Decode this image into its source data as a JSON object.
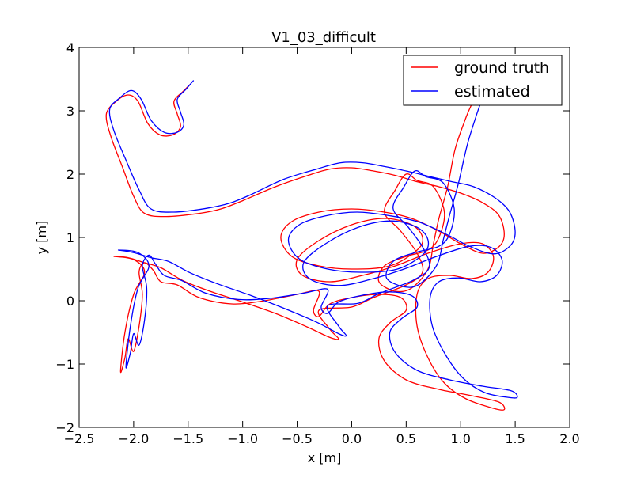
{
  "chart_data": {
    "type": "line",
    "title": "V1_03_difficult",
    "xlabel": "x [m]",
    "ylabel": "y [m]",
    "xlim": [
      -2.5,
      2.0
    ],
    "ylim": [
      -2,
      4
    ],
    "xticks": [
      -2.5,
      -2.0,
      -1.5,
      -1.0,
      -0.5,
      0.0,
      0.5,
      1.0,
      1.5,
      2.0
    ],
    "xtick_labels": [
      "−2.5",
      "−2.0",
      "−1.5",
      "−1.0",
      "−0.5",
      "0.0",
      "0.5",
      "1.0",
      "1.5",
      "2.0"
    ],
    "yticks": [
      -2,
      -1,
      0,
      1,
      2,
      3,
      4
    ],
    "ytick_labels": [
      "−2",
      "−1",
      "0",
      "1",
      "2",
      "3",
      "4"
    ],
    "grid": false,
    "legend_position": "top-right",
    "series": [
      {
        "name": "ground truth",
        "color": "#ff0000",
        "points": [
          [
            -1.48,
            3.42
          ],
          [
            -1.55,
            3.3
          ],
          [
            -1.63,
            3.15
          ],
          [
            -1.6,
            2.95
          ],
          [
            -1.57,
            2.75
          ],
          [
            -1.64,
            2.62
          ],
          [
            -1.76,
            2.62
          ],
          [
            -1.87,
            2.8
          ],
          [
            -1.96,
            3.15
          ],
          [
            -2.05,
            3.25
          ],
          [
            -2.16,
            3.15
          ],
          [
            -2.25,
            2.95
          ],
          [
            -2.21,
            2.6
          ],
          [
            -2.1,
            2.1
          ],
          [
            -2.0,
            1.65
          ],
          [
            -1.9,
            1.38
          ],
          [
            -1.7,
            1.33
          ],
          [
            -1.4,
            1.38
          ],
          [
            -1.2,
            1.45
          ],
          [
            -1.0,
            1.58
          ],
          [
            -0.7,
            1.8
          ],
          [
            -0.4,
            1.98
          ],
          [
            -0.2,
            2.08
          ],
          [
            0.0,
            2.1
          ],
          [
            0.2,
            2.05
          ],
          [
            0.4,
            1.98
          ],
          [
            0.6,
            1.88
          ],
          [
            0.8,
            1.8
          ],
          [
            1.0,
            1.7
          ],
          [
            1.2,
            1.55
          ],
          [
            1.35,
            1.35
          ],
          [
            1.4,
            1.05
          ],
          [
            1.35,
            0.85
          ],
          [
            1.2,
            0.75
          ],
          [
            1.0,
            0.9
          ],
          [
            0.8,
            1.1
          ],
          [
            0.55,
            1.3
          ],
          [
            0.3,
            1.4
          ],
          [
            0.0,
            1.45
          ],
          [
            -0.3,
            1.4
          ],
          [
            -0.55,
            1.25
          ],
          [
            -0.65,
            1.0
          ],
          [
            -0.55,
            0.7
          ],
          [
            -0.3,
            0.55
          ],
          [
            0.0,
            0.5
          ],
          [
            0.35,
            0.55
          ],
          [
            0.6,
            0.8
          ],
          [
            0.65,
            1.0
          ],
          [
            0.55,
            1.2
          ],
          [
            0.3,
            1.3
          ],
          [
            0.0,
            1.2
          ],
          [
            -0.3,
            0.95
          ],
          [
            -0.5,
            0.65
          ],
          [
            -0.45,
            0.4
          ],
          [
            -0.2,
            0.3
          ],
          [
            0.1,
            0.4
          ],
          [
            0.4,
            0.55
          ],
          [
            0.7,
            0.75
          ],
          [
            1.0,
            0.9
          ],
          [
            1.2,
            0.9
          ],
          [
            1.3,
            0.7
          ],
          [
            1.25,
            0.45
          ],
          [
            1.1,
            0.35
          ],
          [
            0.9,
            0.4
          ],
          [
            0.7,
            0.35
          ],
          [
            0.6,
            0.1
          ],
          [
            0.6,
            -0.4
          ],
          [
            0.7,
            -0.9
          ],
          [
            0.85,
            -1.3
          ],
          [
            1.05,
            -1.55
          ],
          [
            1.3,
            -1.7
          ],
          [
            1.4,
            -1.72
          ],
          [
            1.35,
            -1.6
          ],
          [
            1.1,
            -1.5
          ],
          [
            0.8,
            -1.4
          ],
          [
            0.5,
            -1.25
          ],
          [
            0.3,
            -0.95
          ],
          [
            0.25,
            -0.6
          ],
          [
            0.35,
            -0.35
          ],
          [
            0.5,
            -0.15
          ],
          [
            0.45,
            0.05
          ],
          [
            0.25,
            0.1
          ],
          [
            0.0,
            0.05
          ],
          [
            -0.2,
            -0.05
          ],
          [
            -0.3,
            -0.25
          ],
          [
            -0.35,
            -0.15
          ],
          [
            -0.3,
            0.15
          ],
          [
            -0.5,
            0.1
          ],
          [
            -0.8,
            0.0
          ],
          [
            -1.1,
            -0.05
          ],
          [
            -1.4,
            0.05
          ],
          [
            -1.6,
            0.25
          ],
          [
            -1.75,
            0.3
          ],
          [
            -1.82,
            0.48
          ],
          [
            -1.9,
            0.6
          ],
          [
            -1.95,
            0.45
          ],
          [
            -1.92,
            0.1
          ],
          [
            -1.95,
            -0.4
          ],
          [
            -2.0,
            -0.8
          ],
          [
            -2.05,
            -0.6
          ],
          [
            -2.08,
            -0.9
          ],
          [
            -2.12,
            -1.12
          ],
          [
            -2.08,
            -0.5
          ],
          [
            -2.0,
            0.1
          ],
          [
            -1.9,
            0.45
          ],
          [
            -2.0,
            0.65
          ],
          [
            -2.18,
            0.7
          ],
          [
            -2.05,
            0.68
          ],
          [
            -1.9,
            0.6
          ],
          [
            -1.75,
            0.52
          ],
          [
            -1.55,
            0.32
          ],
          [
            -1.3,
            0.15
          ],
          [
            -1.0,
            -0.02
          ],
          [
            -0.7,
            -0.2
          ],
          [
            -0.4,
            -0.42
          ],
          [
            -0.2,
            -0.58
          ],
          [
            -0.12,
            -0.6
          ],
          [
            -0.2,
            -0.45
          ],
          [
            -0.3,
            -0.15
          ],
          [
            0.0,
            -0.1
          ],
          [
            0.2,
            0.05
          ],
          [
            0.5,
            0.25
          ],
          [
            0.65,
            0.45
          ],
          [
            0.6,
            0.75
          ],
          [
            0.45,
            1.1
          ],
          [
            0.3,
            1.4
          ],
          [
            0.4,
            1.75
          ],
          [
            0.5,
            2.0
          ],
          [
            0.6,
            1.9
          ],
          [
            0.75,
            1.8
          ],
          [
            0.85,
            1.4
          ],
          [
            0.8,
            1.0
          ],
          [
            0.7,
            0.8
          ],
          [
            0.5,
            0.7
          ],
          [
            0.3,
            0.55
          ],
          [
            0.25,
            0.3
          ],
          [
            0.4,
            0.15
          ],
          [
            0.55,
            0.2
          ],
          [
            0.7,
            0.5
          ],
          [
            0.75,
            0.9
          ],
          [
            0.8,
            1.3
          ],
          [
            0.88,
            1.8
          ],
          [
            0.95,
            2.4
          ],
          [
            1.05,
            2.9
          ],
          [
            1.1,
            3.1
          ]
        ]
      },
      {
        "name": "estimated",
        "color": "#0000ff",
        "points": [
          [
            -1.45,
            3.48
          ],
          [
            -1.52,
            3.34
          ],
          [
            -1.6,
            3.18
          ],
          [
            -1.57,
            2.98
          ],
          [
            -1.54,
            2.78
          ],
          [
            -1.6,
            2.66
          ],
          [
            -1.72,
            2.66
          ],
          [
            -1.84,
            2.85
          ],
          [
            -1.93,
            3.18
          ],
          [
            -2.02,
            3.32
          ],
          [
            -2.13,
            3.2
          ],
          [
            -2.22,
            3.02
          ],
          [
            -2.18,
            2.68
          ],
          [
            -2.06,
            2.18
          ],
          [
            -1.95,
            1.75
          ],
          [
            -1.84,
            1.45
          ],
          [
            -1.63,
            1.4
          ],
          [
            -1.33,
            1.46
          ],
          [
            -1.12,
            1.54
          ],
          [
            -0.92,
            1.68
          ],
          [
            -0.62,
            1.92
          ],
          [
            -0.32,
            2.08
          ],
          [
            -0.1,
            2.18
          ],
          [
            0.1,
            2.18
          ],
          [
            0.3,
            2.12
          ],
          [
            0.5,
            2.05
          ],
          [
            0.72,
            1.96
          ],
          [
            0.92,
            1.88
          ],
          [
            1.12,
            1.8
          ],
          [
            1.32,
            1.62
          ],
          [
            1.45,
            1.4
          ],
          [
            1.5,
            1.08
          ],
          [
            1.45,
            0.86
          ],
          [
            1.3,
            0.74
          ],
          [
            1.08,
            0.86
          ],
          [
            0.88,
            1.04
          ],
          [
            0.62,
            1.24
          ],
          [
            0.36,
            1.34
          ],
          [
            0.05,
            1.4
          ],
          [
            -0.24,
            1.34
          ],
          [
            -0.48,
            1.2
          ],
          [
            -0.58,
            0.96
          ],
          [
            -0.48,
            0.66
          ],
          [
            -0.22,
            0.5
          ],
          [
            0.08,
            0.45
          ],
          [
            0.42,
            0.5
          ],
          [
            0.66,
            0.74
          ],
          [
            0.7,
            0.96
          ],
          [
            0.6,
            1.16
          ],
          [
            0.36,
            1.26
          ],
          [
            0.06,
            1.16
          ],
          [
            -0.24,
            0.9
          ],
          [
            -0.44,
            0.6
          ],
          [
            -0.38,
            0.34
          ],
          [
            -0.12,
            0.24
          ],
          [
            0.18,
            0.34
          ],
          [
            0.48,
            0.5
          ],
          [
            0.78,
            0.7
          ],
          [
            1.08,
            0.86
          ],
          [
            1.28,
            0.84
          ],
          [
            1.38,
            0.64
          ],
          [
            1.33,
            0.4
          ],
          [
            1.18,
            0.3
          ],
          [
            0.98,
            0.36
          ],
          [
            0.8,
            0.3
          ],
          [
            0.72,
            0.05
          ],
          [
            0.74,
            -0.4
          ],
          [
            0.86,
            -0.85
          ],
          [
            1.02,
            -1.22
          ],
          [
            1.22,
            -1.45
          ],
          [
            1.45,
            -1.53
          ],
          [
            1.52,
            -1.52
          ],
          [
            1.46,
            -1.42
          ],
          [
            1.2,
            -1.35
          ],
          [
            0.9,
            -1.25
          ],
          [
            0.6,
            -1.1
          ],
          [
            0.4,
            -0.82
          ],
          [
            0.35,
            -0.5
          ],
          [
            0.46,
            -0.28
          ],
          [
            0.6,
            -0.1
          ],
          [
            0.55,
            0.08
          ],
          [
            0.34,
            0.14
          ],
          [
            0.08,
            0.08
          ],
          [
            -0.12,
            -0.02
          ],
          [
            -0.22,
            -0.2
          ],
          [
            -0.28,
            -0.1
          ],
          [
            -0.22,
            0.18
          ],
          [
            -0.44,
            0.12
          ],
          [
            -0.74,
            0.04
          ],
          [
            -1.04,
            0.02
          ],
          [
            -1.34,
            0.12
          ],
          [
            -1.56,
            0.32
          ],
          [
            -1.72,
            0.4
          ],
          [
            -1.8,
            0.58
          ],
          [
            -1.86,
            0.72
          ],
          [
            -1.92,
            0.55
          ],
          [
            -1.88,
            0.2
          ],
          [
            -1.9,
            -0.3
          ],
          [
            -1.95,
            -0.7
          ],
          [
            -2.0,
            -0.52
          ],
          [
            -2.03,
            -0.82
          ],
          [
            -2.07,
            -1.05
          ],
          [
            -2.03,
            -0.4
          ],
          [
            -1.96,
            0.2
          ],
          [
            -1.86,
            0.55
          ],
          [
            -1.96,
            0.76
          ],
          [
            -2.14,
            0.8
          ],
          [
            -2.0,
            0.76
          ],
          [
            -1.84,
            0.68
          ],
          [
            -1.68,
            0.62
          ],
          [
            -1.48,
            0.44
          ],
          [
            -1.22,
            0.26
          ],
          [
            -0.92,
            0.08
          ],
          [
            -0.62,
            -0.12
          ],
          [
            -0.32,
            -0.34
          ],
          [
            -0.12,
            -0.52
          ],
          [
            -0.05,
            -0.55
          ],
          [
            -0.12,
            -0.4
          ],
          [
            -0.22,
            -0.08
          ],
          [
            0.06,
            -0.04
          ],
          [
            0.26,
            0.12
          ],
          [
            0.56,
            0.32
          ],
          [
            0.71,
            0.52
          ],
          [
            0.66,
            0.82
          ],
          [
            0.52,
            1.16
          ],
          [
            0.38,
            1.46
          ],
          [
            0.48,
            1.8
          ],
          [
            0.58,
            2.05
          ],
          [
            0.68,
            1.96
          ],
          [
            0.84,
            1.86
          ],
          [
            0.94,
            1.46
          ],
          [
            0.9,
            1.06
          ],
          [
            0.8,
            0.86
          ],
          [
            0.58,
            0.76
          ],
          [
            0.38,
            0.62
          ],
          [
            0.32,
            0.36
          ],
          [
            0.48,
            0.22
          ],
          [
            0.62,
            0.26
          ],
          [
            0.78,
            0.56
          ],
          [
            0.84,
            0.96
          ],
          [
            0.9,
            1.36
          ],
          [
            0.98,
            1.86
          ],
          [
            1.06,
            2.46
          ],
          [
            1.15,
            2.96
          ],
          [
            1.2,
            3.2
          ]
        ]
      }
    ]
  }
}
